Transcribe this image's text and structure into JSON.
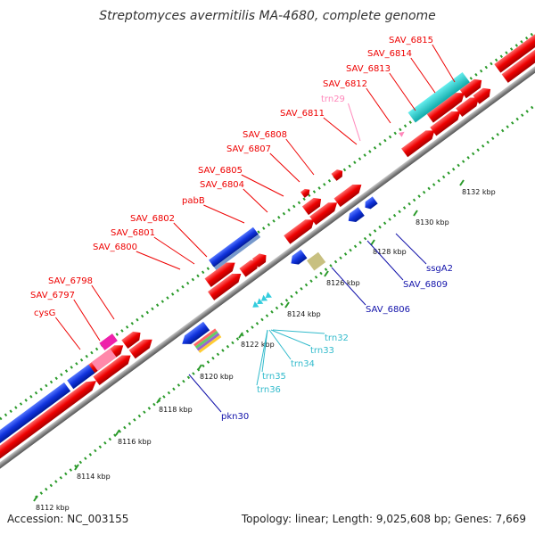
{
  "title": "Streptomyces avermitilis MA-4680, complete genome",
  "accession": "Accession: NC_003155",
  "summary": "Topology: linear; Length: 9,025,608 bp; Genes: 7,669",
  "colors": {
    "forward_gene": "#ff0000",
    "reverse_gene": "#0000ee",
    "cds_forward": "#ff0000",
    "trna_label": "#33ccdd",
    "trna_alt_label": "#ff88bb",
    "region_cyan": "#22cccc",
    "region_blue": "#1133cc",
    "region_pink": "#ff88aa",
    "region_magenta": "#ee22aa",
    "region_olive": "#c8c080",
    "backbone": "#888888",
    "ruler": "#2a9a2a"
  },
  "scale_ticks": [
    "8112 kbp",
    "8114 kbp",
    "8116 kbp",
    "8118 kbp",
    "8120 kbp",
    "8122 kbp",
    "8124 kbp",
    "8126 kbp",
    "8128 kbp",
    "8130 kbp",
    "8132 kbp"
  ],
  "upper_labels": [
    "cysG",
    "SAV_6797",
    "SAV_6798",
    "SAV_6800",
    "SAV_6801",
    "SAV_6802",
    "pabB",
    "SAV_6804",
    "SAV_6805",
    "SAV_6807",
    "SAV_6808",
    "SAV_6811",
    "trn29",
    "SAV_6812",
    "SAV_6813",
    "SAV_6814",
    "SAV_6815"
  ],
  "lower_labels": [
    "pkn30",
    "trn36",
    "trn35",
    "trn34",
    "trn33",
    "trn32",
    "SAV_6806",
    "SAV_6809",
    "ssgA2"
  ]
}
